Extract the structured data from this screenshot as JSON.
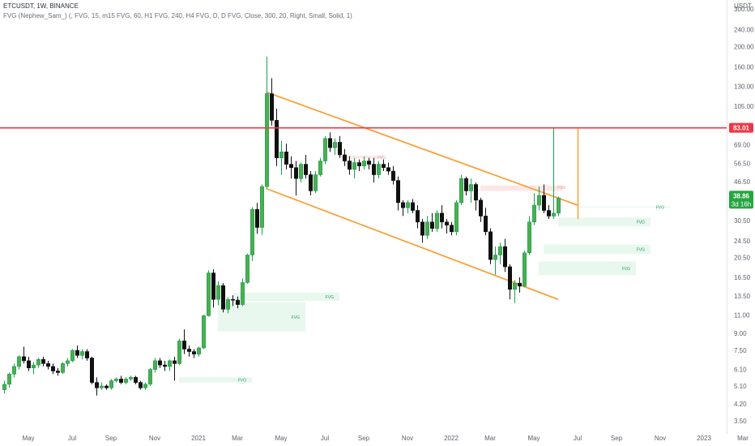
{
  "header": {
    "symbol_line": "ETCUSDT, 1W, BINANCE",
    "indicator_line": "FVG (Nephew_Sam_) (, FVG, 15, m15 FVG, 60, H1 FVG, 240, H4 FVG, D, D FVG, Close, 300, 20, Right, Small, Solid, 1)"
  },
  "chart_data": {
    "type": "candlestick",
    "quote_currency": "USDT",
    "y_scale": "log",
    "ylim": [
      3.5,
      300
    ],
    "y_ticks": [
      3.5,
      4.2,
      5.1,
      6.1,
      7.5,
      9.0,
      11.0,
      13.5,
      16.5,
      20.5,
      24.5,
      30.5,
      38.0,
      46.5,
      56.5,
      69.0,
      83.01,
      105.0,
      130.0,
      160.0,
      200.0,
      240.0,
      300.0
    ],
    "y_tick_labels": [
      "3.50",
      "4.20",
      "5.10",
      "6.10",
      "7.50",
      "9.00",
      "11.00",
      "13.50",
      "16.50",
      "20.50",
      "24.50",
      "30.50",
      "",
      "46.50",
      "56.50",
      "69.00",
      "",
      "105.00",
      "130.00",
      "160.00",
      "200.00",
      "240.00",
      "300.00"
    ],
    "x_labels": [
      "May",
      "Jul",
      "Sep",
      "Nov",
      "2021",
      "Mar",
      "May",
      "Jul",
      "Sep",
      "Nov",
      "2022",
      "Mar",
      "May",
      "Jul",
      "Sep",
      "Nov",
      "2023",
      "Mar"
    ],
    "x_label_weeks": [
      0,
      9,
      17,
      26,
      35,
      43,
      52,
      61,
      69,
      78,
      87,
      95,
      104,
      113,
      121,
      130,
      139,
      147
    ],
    "first_week": "2020-04-27",
    "ohlc": [
      [
        4.9,
        5.4,
        4.7,
        5.2
      ],
      [
        5.2,
        5.9,
        5.0,
        5.8
      ],
      [
        5.8,
        6.5,
        5.6,
        6.3
      ],
      [
        6.3,
        7.1,
        6.1,
        7.0
      ],
      [
        7.0,
        7.8,
        6.5,
        6.7
      ],
      [
        6.7,
        7.0,
        6.0,
        6.2
      ],
      [
        6.2,
        6.6,
        5.8,
        6.4
      ],
      [
        6.4,
        6.9,
        6.2,
        6.8
      ],
      [
        6.8,
        7.0,
        6.3,
        6.5
      ],
      [
        6.5,
        6.7,
        6.1,
        6.3
      ],
      [
        6.3,
        6.5,
        5.8,
        6.0
      ],
      [
        6.0,
        6.2,
        5.7,
        5.9
      ],
      [
        5.9,
        6.6,
        5.8,
        6.5
      ],
      [
        6.5,
        6.9,
        6.3,
        6.7
      ],
      [
        6.7,
        7.6,
        6.6,
        7.5
      ],
      [
        7.5,
        7.9,
        6.9,
        7.1
      ],
      [
        7.1,
        7.6,
        6.8,
        7.4
      ],
      [
        7.4,
        7.6,
        6.7,
        6.9
      ],
      [
        6.9,
        7.0,
        5.2,
        5.3
      ],
      [
        5.3,
        5.6,
        4.6,
        5.0
      ],
      [
        5.0,
        5.3,
        4.9,
        5.1
      ],
      [
        5.1,
        5.2,
        4.9,
        5.0
      ],
      [
        5.0,
        5.5,
        4.9,
        5.4
      ],
      [
        5.4,
        5.6,
        5.3,
        5.5
      ],
      [
        5.5,
        5.7,
        5.2,
        5.3
      ],
      [
        5.3,
        5.6,
        5.2,
        5.5
      ],
      [
        5.5,
        5.7,
        5.4,
        5.6
      ],
      [
        5.6,
        5.7,
        5.2,
        5.3
      ],
      [
        5.3,
        5.4,
        4.9,
        5.0
      ],
      [
        5.0,
        5.3,
        4.9,
        5.2
      ],
      [
        5.2,
        6.2,
        5.1,
        6.1
      ],
      [
        6.1,
        6.9,
        5.9,
        6.7
      ],
      [
        6.7,
        6.9,
        6.2,
        6.4
      ],
      [
        6.4,
        6.7,
        6.0,
        6.3
      ],
      [
        6.3,
        6.8,
        6.0,
        6.7
      ],
      [
        6.7,
        7.0,
        5.4,
        6.5
      ],
      [
        6.5,
        8.5,
        6.4,
        8.3
      ],
      [
        8.3,
        9.4,
        7.2,
        7.6
      ],
      [
        7.6,
        7.9,
        7.0,
        7.4
      ],
      [
        7.4,
        7.6,
        6.9,
        7.2
      ],
      [
        7.2,
        7.8,
        7.0,
        7.7
      ],
      [
        7.7,
        11.0,
        7.6,
        10.9
      ],
      [
        10.9,
        17.8,
        10.8,
        17.3
      ],
      [
        17.3,
        18.0,
        11.9,
        13.0
      ],
      [
        13.0,
        15.8,
        12.2,
        15.1
      ],
      [
        15.1,
        15.5,
        11.3,
        11.7
      ],
      [
        11.7,
        13.3,
        11.2,
        13.0
      ],
      [
        13.0,
        13.6,
        12.1,
        12.9
      ],
      [
        12.9,
        13.4,
        11.8,
        12.3
      ],
      [
        12.3,
        16.3,
        12.1,
        15.6
      ],
      [
        15.6,
        21.3,
        15.4,
        21.0
      ],
      [
        21.0,
        35.2,
        19.7,
        34.4
      ],
      [
        34.4,
        36.9,
        26.4,
        28.3
      ],
      [
        28.3,
        45.0,
        26.1,
        44.0
      ],
      [
        44.0,
        179.0,
        43.0,
        120.0
      ],
      [
        120.0,
        142.0,
        85.0,
        90.0
      ],
      [
        90.0,
        102.0,
        55.0,
        60.0
      ],
      [
        60.0,
        72.0,
        50.0,
        64.0
      ],
      [
        64.0,
        70.0,
        53.0,
        56.0
      ],
      [
        56.0,
        61.0,
        48.0,
        54.0
      ],
      [
        54.0,
        58.0,
        40.0,
        48.0
      ],
      [
        48.0,
        57.0,
        46.0,
        56.0
      ],
      [
        56.0,
        62.0,
        48.0,
        50.0
      ],
      [
        50.0,
        52.0,
        40.0,
        42.0
      ],
      [
        42.0,
        52.0,
        41.0,
        50.0
      ],
      [
        50.0,
        60.0,
        49.0,
        58.0
      ],
      [
        58.0,
        76.0,
        56.0,
        74.0
      ],
      [
        74.0,
        79.0,
        64.0,
        67.0
      ],
      [
        67.0,
        74.0,
        62.0,
        71.0
      ],
      [
        71.0,
        76.0,
        60.0,
        62.0
      ],
      [
        62.0,
        66.0,
        55.0,
        58.0
      ],
      [
        58.0,
        61.0,
        50.0,
        53.0
      ],
      [
        53.0,
        60.0,
        48.0,
        57.0
      ],
      [
        57.0,
        59.0,
        52.0,
        55.0
      ],
      [
        55.0,
        61.0,
        53.0,
        58.0
      ],
      [
        58.0,
        60.0,
        53.0,
        56.0
      ],
      [
        56.0,
        60.0,
        46.0,
        50.0
      ],
      [
        50.0,
        58.0,
        48.0,
        56.0
      ],
      [
        56.0,
        59.0,
        52.0,
        54.0
      ],
      [
        54.0,
        57.0,
        50.0,
        52.0
      ],
      [
        52.0,
        55.0,
        45.0,
        47.0
      ],
      [
        47.0,
        49.0,
        34.0,
        37.0
      ],
      [
        37.0,
        38.0,
        32.0,
        35.0
      ],
      [
        35.0,
        38.0,
        33.0,
        37.0
      ],
      [
        37.0,
        38.5,
        33.0,
        34.0
      ],
      [
        34.0,
        36.0,
        28.0,
        30.0
      ],
      [
        30.0,
        31.0,
        24.0,
        26.0
      ],
      [
        26.0,
        32.0,
        25.0,
        30.0
      ],
      [
        30.0,
        33.0,
        27.0,
        28.0
      ],
      [
        28.0,
        34.0,
        27.0,
        33.0
      ],
      [
        33.0,
        36.0,
        28.0,
        30.0
      ],
      [
        30.0,
        31.0,
        26.5,
        29.0
      ],
      [
        29.0,
        30.0,
        26.0,
        27.0
      ],
      [
        27.0,
        38.0,
        26.0,
        37.0
      ],
      [
        37.0,
        50.0,
        36.0,
        48.0
      ],
      [
        48.0,
        49.0,
        40.0,
        42.0
      ],
      [
        42.0,
        48.0,
        37.0,
        45.0
      ],
      [
        45.0,
        46.0,
        34.0,
        38.0
      ],
      [
        38.0,
        39.0,
        30.0,
        32.0
      ],
      [
        32.0,
        35.0,
        26.0,
        27.0
      ],
      [
        27.0,
        28.0,
        19.0,
        20.0
      ],
      [
        20.0,
        23.0,
        17.0,
        21.0
      ],
      [
        21.0,
        24.0,
        19.0,
        23.0
      ],
      [
        23.0,
        25.0,
        17.5,
        18.5
      ],
      [
        18.5,
        19.0,
        13.0,
        14.5
      ],
      [
        14.5,
        16.0,
        12.5,
        15.5
      ],
      [
        15.5,
        16.5,
        14.0,
        15.0
      ],
      [
        15.0,
        22.0,
        14.8,
        21.5
      ],
      [
        21.5,
        32.0,
        21.0,
        30.0
      ],
      [
        30.0,
        41.0,
        29.0,
        36.0
      ],
      [
        36.0,
        44.0,
        34.0,
        40.0
      ],
      [
        40.0,
        45.0,
        33.0,
        34.0
      ],
      [
        34.0,
        36.0,
        31.0,
        32.0
      ],
      [
        32.0,
        83.0,
        31.0,
        33.0
      ],
      [
        33.0,
        39.5,
        32.0,
        38.86
      ]
    ],
    "levels": [
      {
        "price": 83.01,
        "label": "83.01",
        "color": "#f23645"
      }
    ],
    "channel": {
      "color": "#f7a23b",
      "upper": [
        [
          54,
          122
        ],
        [
          118,
          36
        ]
      ],
      "lower": [
        [
          54,
          43
        ],
        [
          114,
          13
        ]
      ]
    },
    "target_line": {
      "week": 118,
      "from": 31,
      "to": 83.01,
      "color": "#f7a23b"
    },
    "fvg_zones": [
      {
        "label": "FVG",
        "start_week": 47,
        "end_week": 69,
        "top": 14.0,
        "bottom": 12.8
      },
      {
        "label": "FVG",
        "start_week": 44,
        "end_week": 62,
        "top": 12.6,
        "bottom": 9.2
      },
      {
        "label": "FVG",
        "start_week": 36,
        "end_week": 51,
        "top": 5.6,
        "bottom": 5.3
      },
      {
        "label": "FVG",
        "start_week": 114,
        "end_week": 133,
        "top": 31.5,
        "bottom": 28.6
      },
      {
        "label": "FVG",
        "start_week": 111,
        "end_week": 133,
        "top": 23.5,
        "bottom": 21.2
      },
      {
        "label": "FVG",
        "start_week": 110,
        "end_week": 130,
        "top": 19.6,
        "bottom": 16.9
      },
      {
        "label": "FVG",
        "start_week": 118,
        "end_week": 137,
        "top": 35.5,
        "bottom": 35.0
      }
    ],
    "bear_fvg_zones": [
      {
        "label": "FVG",
        "start_week": 69,
        "end_week": 78,
        "top": 61.5,
        "bottom": 59.5
      },
      {
        "label": "FVG",
        "start_week": 98,
        "end_week": 115,
        "top": 44.5,
        "bottom": 42.0
      }
    ],
    "last_price": "38.86",
    "countdown": "3d 16h",
    "colors": {
      "up": "#26a69a",
      "down": "#111111",
      "up_fill": "#4caf50",
      "fvg": "#e8f8ee",
      "bear_fvg": "#fde6e6"
    }
  }
}
